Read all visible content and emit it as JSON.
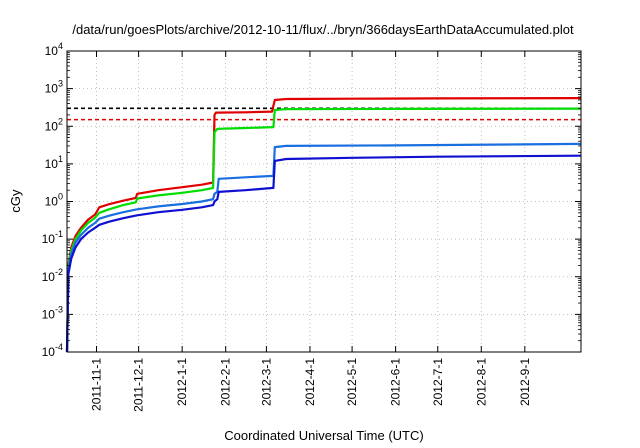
{
  "chart_data": {
    "type": "line",
    "title": "/data/run/goesPlots/archive/2012-10-11/flux/../bryn/366daysEarthDataAccumulated.plot",
    "xlabel": "Coordinated Universal Time (UTC)",
    "ylabel": "cGy",
    "x_type": "date",
    "xlim": [
      "2011-10-11",
      "2012-10-11"
    ],
    "ylim": [
      0.0001,
      10000
    ],
    "y_scale": "log",
    "grid": true,
    "x_ticks": [
      "2011-11-1",
      "2011-12-1",
      "2012-1-1",
      "2012-2-1",
      "2012-3-1",
      "2012-4-1",
      "2012-5-1",
      "2012-6-1",
      "2012-7-1",
      "2012-8-1",
      "2012-9-1"
    ],
    "y_ticks": [
      {
        "value": 0.0001,
        "base": "10",
        "exp": "-4"
      },
      {
        "value": 0.001,
        "base": "10",
        "exp": "-3"
      },
      {
        "value": 0.01,
        "base": "10",
        "exp": "-2"
      },
      {
        "value": 0.1,
        "base": "10",
        "exp": "-1"
      },
      {
        "value": 1,
        "base": "10",
        "exp": "0"
      },
      {
        "value": 10,
        "base": "10",
        "exp": "1"
      },
      {
        "value": 100,
        "base": "10",
        "exp": "2"
      },
      {
        "value": 1000,
        "base": "10",
        "exp": "3"
      },
      {
        "value": 10000,
        "base": "10",
        "exp": "4"
      }
    ],
    "reference_lines": [
      {
        "y": 300,
        "color": "#000000",
        "style": "dashed"
      },
      {
        "y": 150,
        "color": "#e00000",
        "style": "dashed"
      }
    ],
    "series": [
      {
        "color": "#e00000",
        "points": [
          [
            "2011-10-11",
            0.0001
          ],
          [
            "2011-10-12",
            0.02
          ],
          [
            "2011-10-14",
            0.06
          ],
          [
            "2011-10-17",
            0.12
          ],
          [
            "2011-10-21",
            0.2
          ],
          [
            "2011-10-26",
            0.33
          ],
          [
            "2011-10-31",
            0.45
          ],
          [
            "2011-11-03",
            0.7
          ],
          [
            "2011-11-10",
            0.85
          ],
          [
            "2011-11-20",
            1.05
          ],
          [
            "2011-11-29",
            1.25
          ],
          [
            "2011-11-30",
            1.6
          ],
          [
            "2011-12-15",
            2.0
          ],
          [
            "2012-01-01",
            2.4
          ],
          [
            "2012-01-15",
            2.8
          ],
          [
            "2012-01-23",
            3.2
          ],
          [
            "2012-01-24",
            200
          ],
          [
            "2012-01-25",
            230
          ],
          [
            "2012-02-15",
            235
          ],
          [
            "2012-03-05",
            245
          ],
          [
            "2012-03-07",
            500
          ],
          [
            "2012-03-15",
            530
          ],
          [
            "2012-05-01",
            540
          ],
          [
            "2012-07-01",
            550
          ],
          [
            "2012-10-11",
            560
          ]
        ]
      },
      {
        "color": "#00dd00",
        "points": [
          [
            "2011-10-11",
            0.0001
          ],
          [
            "2011-10-12",
            0.018
          ],
          [
            "2011-10-14",
            0.05
          ],
          [
            "2011-10-17",
            0.1
          ],
          [
            "2011-10-21",
            0.17
          ],
          [
            "2011-10-26",
            0.27
          ],
          [
            "2011-10-31",
            0.37
          ],
          [
            "2011-11-03",
            0.5
          ],
          [
            "2011-11-10",
            0.62
          ],
          [
            "2011-11-20",
            0.8
          ],
          [
            "2011-11-29",
            0.95
          ],
          [
            "2011-11-30",
            1.2
          ],
          [
            "2011-12-15",
            1.45
          ],
          [
            "2012-01-01",
            1.7
          ],
          [
            "2012-01-15",
            2.0
          ],
          [
            "2012-01-23",
            2.3
          ],
          [
            "2012-01-24",
            70
          ],
          [
            "2012-01-26",
            85
          ],
          [
            "2012-02-15",
            90
          ],
          [
            "2012-03-06",
            95
          ],
          [
            "2012-03-07",
            270
          ],
          [
            "2012-03-15",
            285
          ],
          [
            "2012-06-01",
            290
          ],
          [
            "2012-10-11",
            295
          ]
        ]
      },
      {
        "color": "#1a6fe0",
        "points": [
          [
            "2011-10-11",
            0.0001
          ],
          [
            "2011-10-12",
            0.015
          ],
          [
            "2011-10-14",
            0.04
          ],
          [
            "2011-10-17",
            0.08
          ],
          [
            "2011-10-21",
            0.13
          ],
          [
            "2011-10-26",
            0.2
          ],
          [
            "2011-10-31",
            0.27
          ],
          [
            "2011-11-03",
            0.35
          ],
          [
            "2011-11-10",
            0.42
          ],
          [
            "2011-11-20",
            0.52
          ],
          [
            "2011-11-30",
            0.62
          ],
          [
            "2011-12-15",
            0.74
          ],
          [
            "2012-01-01",
            0.86
          ],
          [
            "2012-01-15",
            1.0
          ],
          [
            "2012-01-23",
            1.15
          ],
          [
            "2012-01-24",
            1.6
          ],
          [
            "2012-01-26",
            1.8
          ],
          [
            "2012-01-27",
            4.0
          ],
          [
            "2012-02-15",
            4.4
          ],
          [
            "2012-03-06",
            4.8
          ],
          [
            "2012-03-07",
            28
          ],
          [
            "2012-03-15",
            30
          ],
          [
            "2012-06-01",
            31
          ],
          [
            "2012-10-11",
            34
          ]
        ]
      },
      {
        "color": "#1010d0",
        "points": [
          [
            "2011-10-11",
            0.0001
          ],
          [
            "2011-10-12",
            0.012
          ],
          [
            "2011-10-14",
            0.03
          ],
          [
            "2011-10-17",
            0.06
          ],
          [
            "2011-10-21",
            0.1
          ],
          [
            "2011-10-26",
            0.15
          ],
          [
            "2011-10-31",
            0.2
          ],
          [
            "2011-11-03",
            0.24
          ],
          [
            "2011-11-10",
            0.29
          ],
          [
            "2011-11-20",
            0.36
          ],
          [
            "2011-11-30",
            0.43
          ],
          [
            "2011-12-15",
            0.52
          ],
          [
            "2012-01-01",
            0.6
          ],
          [
            "2012-01-15",
            0.7
          ],
          [
            "2012-01-23",
            0.8
          ],
          [
            "2012-01-24",
            1.0
          ],
          [
            "2012-01-26",
            1.15
          ],
          [
            "2012-01-27",
            1.8
          ],
          [
            "2012-02-15",
            2.0
          ],
          [
            "2012-03-06",
            2.3
          ],
          [
            "2012-03-07",
            12
          ],
          [
            "2012-03-15",
            13.5
          ],
          [
            "2012-05-01",
            14.5
          ],
          [
            "2012-07-01",
            15.5
          ],
          [
            "2012-10-11",
            16.5
          ]
        ]
      }
    ]
  }
}
